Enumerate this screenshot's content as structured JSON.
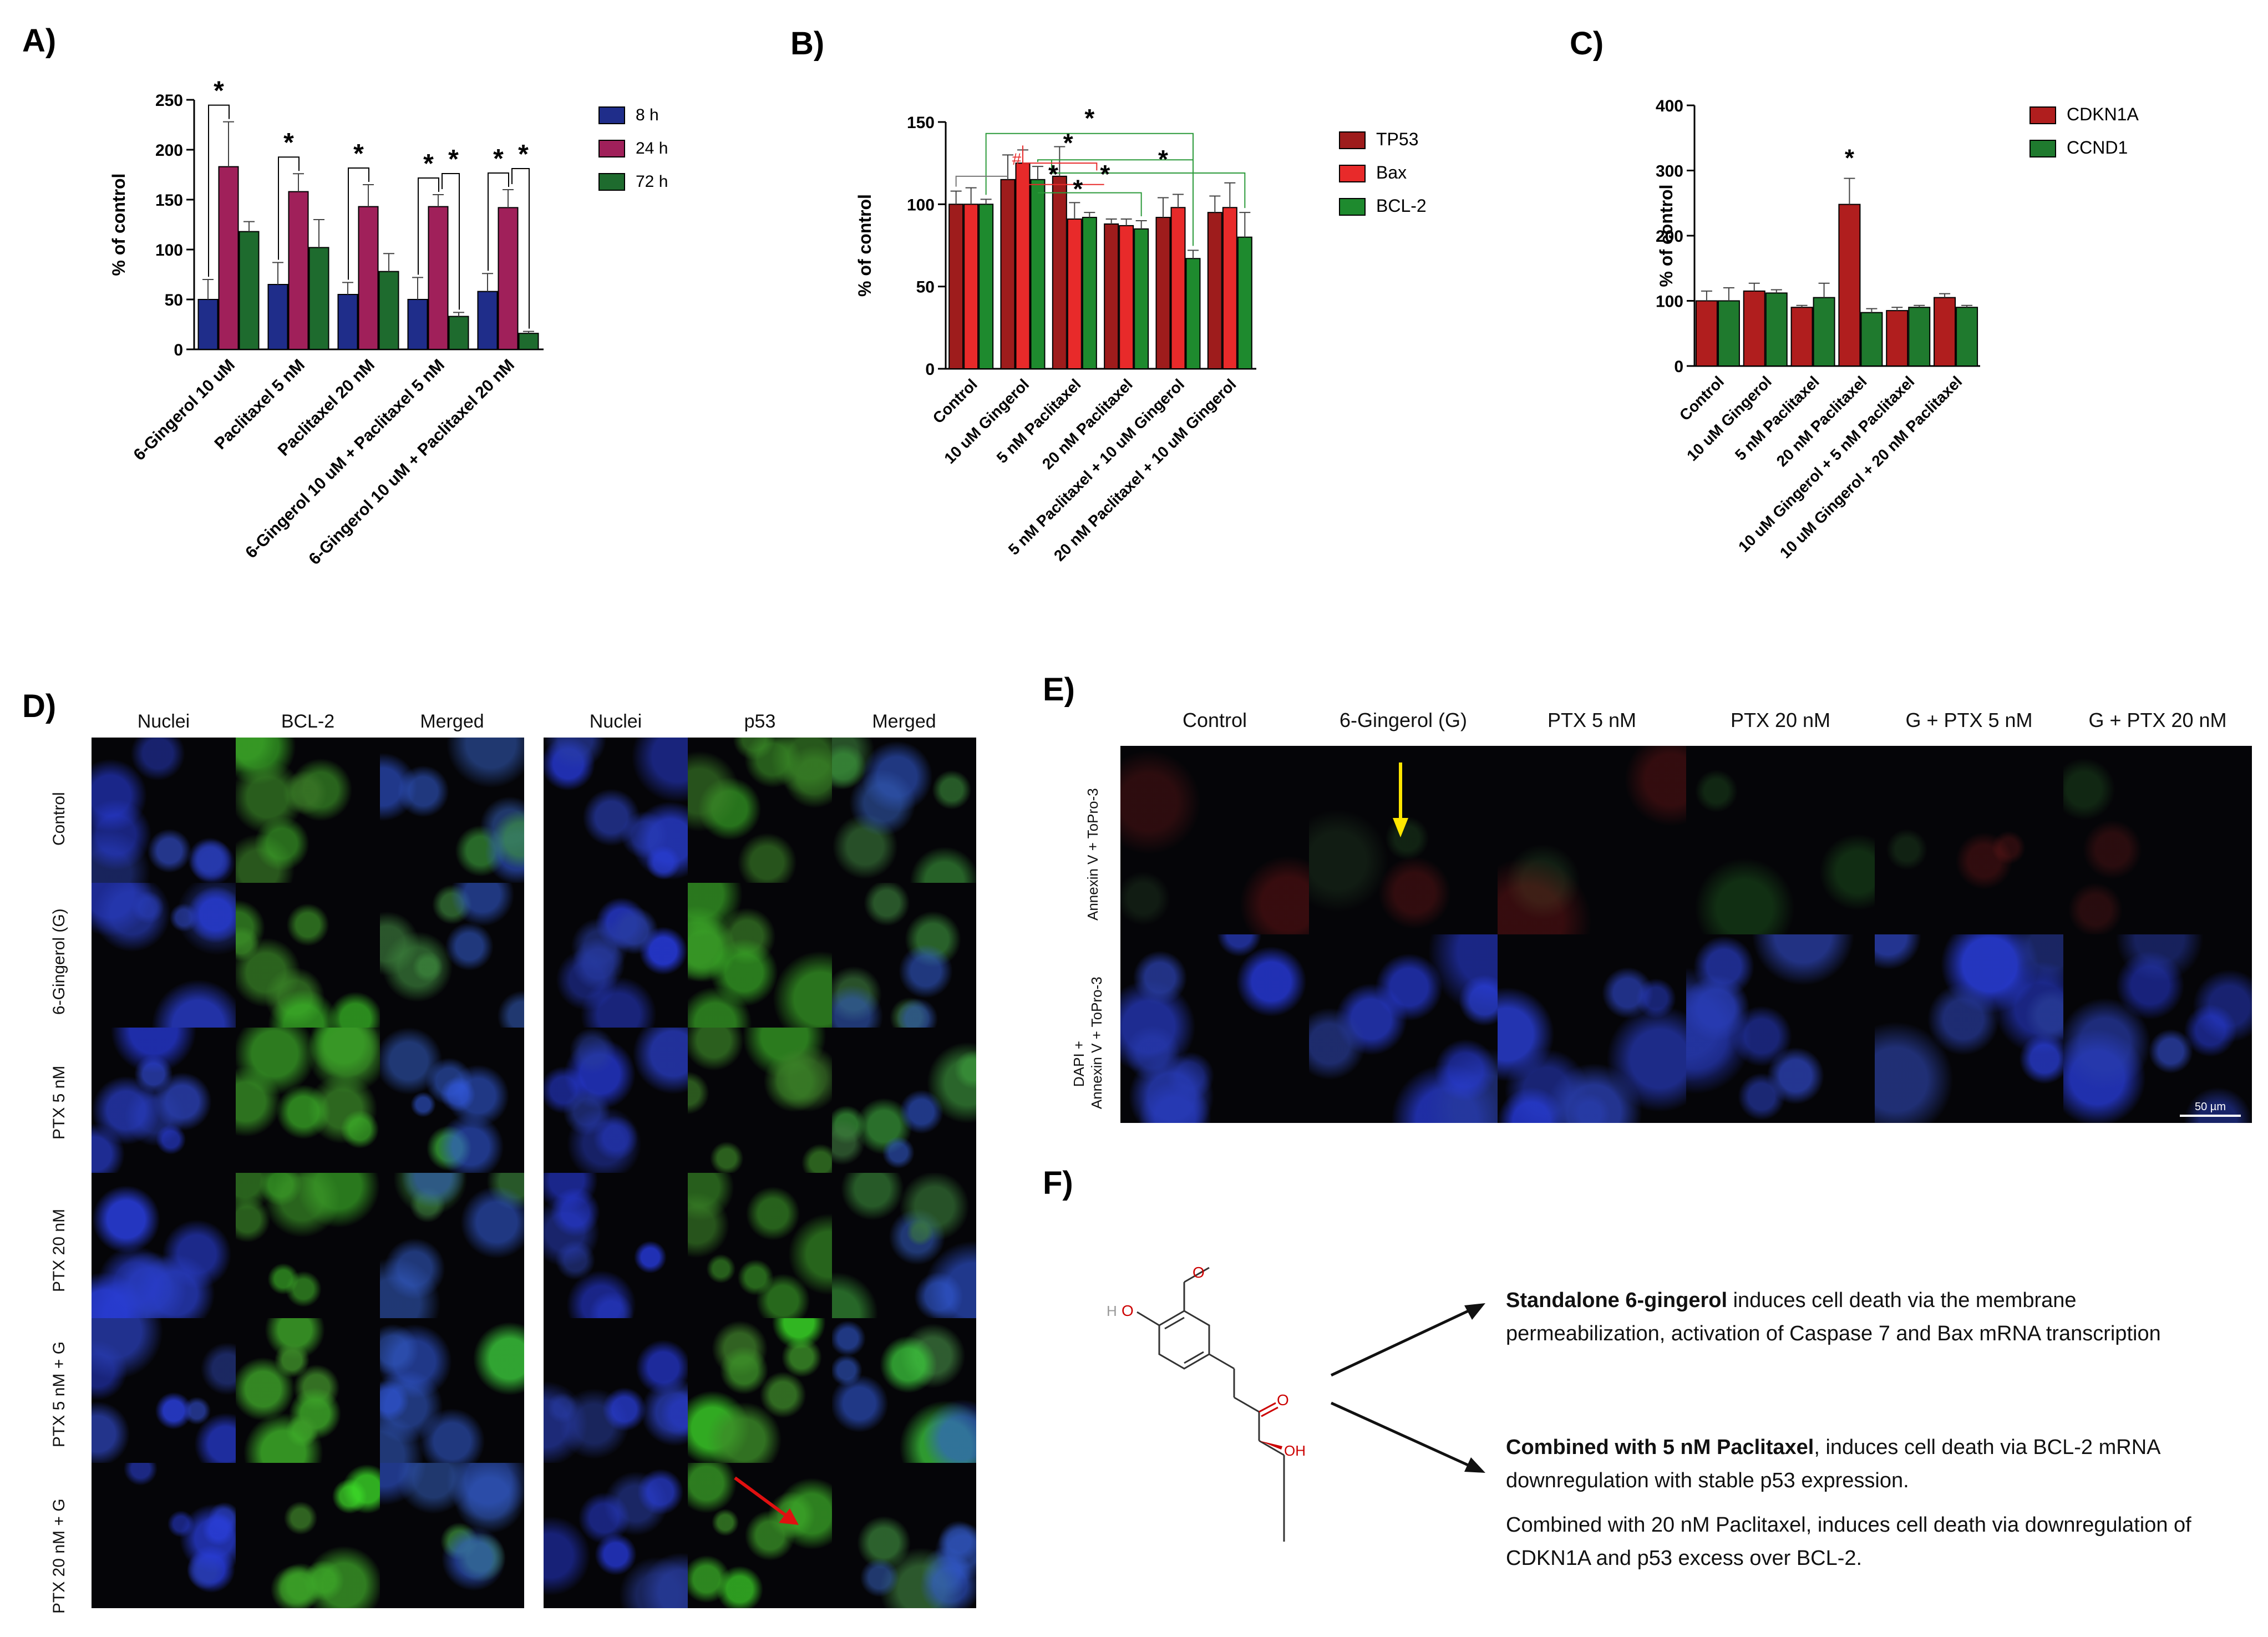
{
  "panels": {
    "A": "A)",
    "B": "B)",
    "C": "C)",
    "D": "D)",
    "E": "E)",
    "F": "F)"
  },
  "chart_data": [
    {
      "id": "A",
      "type": "bar",
      "ylabel": "% of control",
      "ylim": [
        0,
        250
      ],
      "yticks": [
        0,
        50,
        100,
        150,
        200,
        250
      ],
      "categories": [
        "6-Gingerol 10 uM",
        "Paclitaxel 5 nM",
        "Paclitaxel 20 nM",
        "6-Gingerol 10 uM + Paclitaxel 5 nM",
        "6-Gingerol 10 uM + Paclitaxel 20 nM"
      ],
      "series": [
        {
          "name": "8 h",
          "color": "#1f2d8a",
          "values": [
            50,
            65,
            55,
            50,
            58
          ],
          "errors": [
            20,
            22,
            12,
            22,
            18
          ]
        },
        {
          "name": "24 h",
          "color": "#a0205a",
          "values": [
            183,
            158,
            143,
            143,
            142
          ],
          "errors": [
            45,
            18,
            22,
            12,
            18
          ]
        },
        {
          "name": "72 h",
          "color": "#1e6b2e",
          "values": [
            118,
            102,
            78,
            33,
            16
          ],
          "errors": [
            10,
            28,
            18,
            4,
            2
          ]
        }
      ],
      "significance": [
        "*",
        "*",
        "*",
        "*",
        "*",
        "*",
        "*"
      ]
    },
    {
      "id": "B",
      "type": "bar",
      "ylabel": "% of control",
      "ylim": [
        0,
        150
      ],
      "yticks": [
        0,
        50,
        100,
        150
      ],
      "categories": [
        "Control",
        "10 uM Gingerol",
        "5 nM Paclitaxel",
        "20 nM Paclitaxel",
        "5 nM Paclitaxel + 10 uM Gingerol",
        "20 nM Paclitaxel + 10 uM Gingerol"
      ],
      "series": [
        {
          "name": "TP53",
          "color": "#9e1c1c",
          "values": [
            100,
            115,
            117,
            88,
            92,
            95
          ],
          "errors": [
            8,
            15,
            18,
            3,
            12,
            10
          ]
        },
        {
          "name": "Bax",
          "color": "#e82a2a",
          "values": [
            100,
            125,
            91,
            87,
            98,
            98
          ],
          "errors": [
            10,
            8,
            10,
            4,
            8,
            15
          ]
        },
        {
          "name": "BCL-2",
          "color": "#1e8a2e",
          "values": [
            100,
            115,
            92,
            85,
            67,
            80
          ],
          "errors": [
            3,
            8,
            3,
            5,
            5,
            15
          ]
        }
      ],
      "significance": [
        "*",
        "*",
        "*",
        "*",
        "*",
        "*"
      ],
      "hash": "#"
    },
    {
      "id": "C",
      "type": "bar",
      "ylabel": "% of control",
      "ylim": [
        0,
        400
      ],
      "yticks": [
        0,
        100,
        200,
        300,
        400
      ],
      "categories": [
        "Control",
        "10 uM Gingerol",
        "5 nM Paclitaxel",
        "20 nM Paclitaxel",
        "10 uM Gingerol + 5 nM Paclitaxel",
        "10 uM Gingerol + 20 nM Paclitaxel"
      ],
      "series": [
        {
          "name": "CDKN1A",
          "color": "#b01e1e",
          "values": [
            100,
            115,
            90,
            248,
            85,
            105
          ],
          "errors": [
            15,
            12,
            3,
            40,
            5,
            6
          ]
        },
        {
          "name": "CCND1",
          "color": "#1f7a2e",
          "values": [
            100,
            112,
            105,
            82,
            90,
            90
          ],
          "errors": [
            20,
            5,
            22,
            6,
            3,
            3
          ]
        }
      ],
      "significance": [
        "*"
      ]
    }
  ],
  "panelD": {
    "left_headers": [
      "Nuclei",
      "BCL-2",
      "Merged"
    ],
    "right_headers": [
      "Nuclei",
      "p53",
      "Merged"
    ],
    "row_labels": [
      "Control",
      "6-Gingerol (G)",
      "PTX 5 nM",
      "PTX 20 nM",
      "PTX 5 nM + G",
      "PTX 20 nM + G"
    ]
  },
  "panelE": {
    "col_headers": [
      "Control",
      "6-Gingerol (G)",
      "PTX 5 nM",
      "PTX 20 nM",
      "G + PTX 5 nM",
      "G + PTX 20 nM"
    ],
    "row1_label": "Annexin V + ToPro-3",
    "row2_label_a": "DAPI +",
    "row2_label_b": "Annexin V + ToPro-3",
    "scale_bar": "50 µm"
  },
  "panelF": {
    "atom_H": "H",
    "atom_O1": "O",
    "atom_O2": "O",
    "atom_OH": "OH",
    "text1_bold": "Standalone 6-gingerol",
    "text1_rest": " induces cell death via the membrane permeabilization, activation of Caspase 7 and Bax mRNA transcription",
    "text2_bold": "Combined with 5 nM Paclitaxel",
    "text2_rest": ", induces cell death via BCL-2 mRNA downregulation with stable p53 expression.",
    "text3": "Combined with 20 nM Paclitaxel, induces cell death via downregulation of CDKN1A and p53 excess over BCL-2."
  }
}
